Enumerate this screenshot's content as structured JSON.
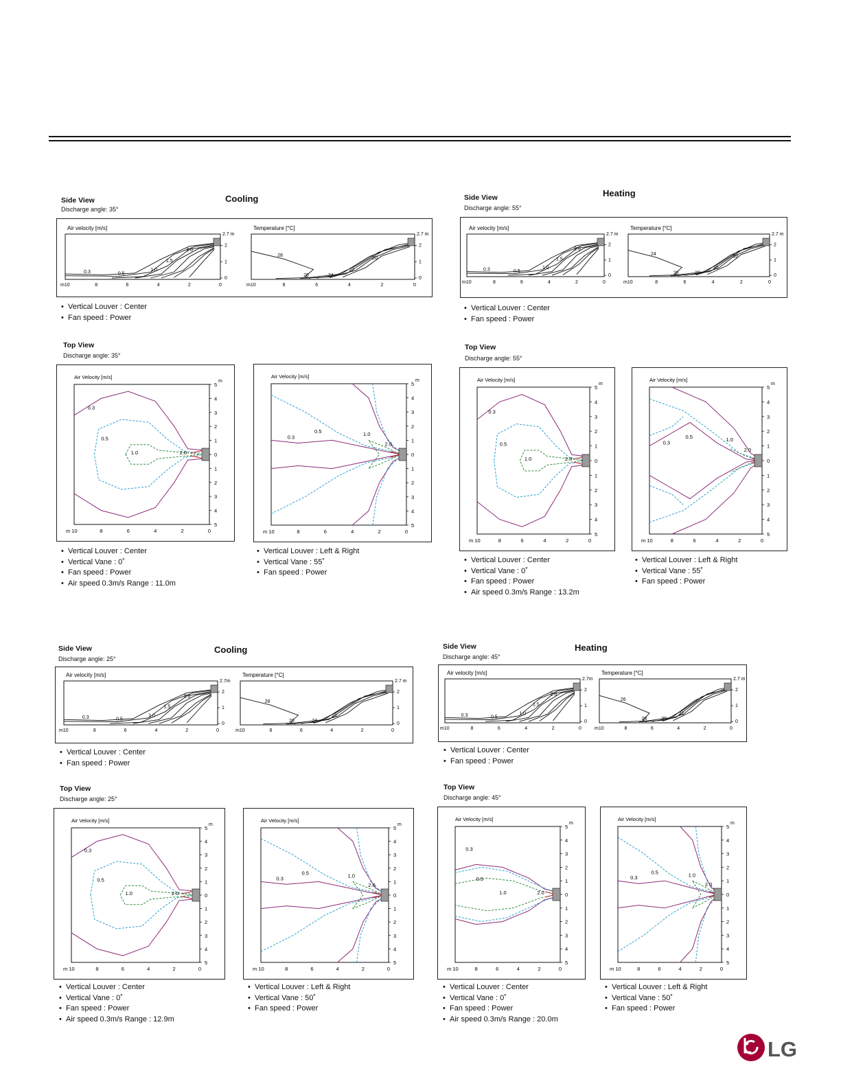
{
  "sections": [
    {
      "id": "s1-cooling",
      "title": "Cooling",
      "side": {
        "title": "Side View",
        "discharge": "Discharge angle: 35°",
        "charts": [
          {
            "label": "Air velocity [m/s]",
            "height_label": "2.7 m",
            "x_ticks": [
              "m10",
              "8",
              "6",
              "4",
              "2",
              "0"
            ],
            "y_ticks": [
              "2",
              "1",
              "0"
            ],
            "contour_labels": [
              "0.3",
              "0.5",
              "1.0",
              "1.5",
              "2.0"
            ]
          },
          {
            "label": "Temperature [°C]",
            "height_label": "2.7 m",
            "x_ticks": [
              "m10",
              "8",
              "6",
              "4",
              "2",
              "0"
            ],
            "y_ticks": [
              "2",
              "1",
              "0"
            ],
            "contour_labels": [
              "28",
              "26",
              "24",
              "22",
              "20"
            ]
          }
        ],
        "bullets": [
          "Vertical Louver : Center",
          "Fan speed : Power"
        ]
      },
      "top": {
        "title": "Top View",
        "discharge": "Discharge angle: 35°",
        "charts": [
          {
            "label": "Air Velocity [m/s]",
            "unit": "m",
            "x_ticks": [
              "m 10",
              "8",
              "6",
              "4",
              "2",
              "0"
            ],
            "y_ticks": [
              "5",
              "4",
              "3",
              "2",
              "1",
              "0",
              "1",
              "2",
              "3",
              "4",
              "5"
            ],
            "contour_labels": [
              "0.3",
              "0.5",
              "1.0",
              "2.0"
            ],
            "bullets": [
              "Vertical Louver : Center",
              "Vertical Vane : 0˚",
              "Fan speed : Power",
              "Air speed 0.3m/s Range : 11.0m"
            ]
          },
          {
            "label": "Air Velocity [m/s]",
            "unit": "m",
            "x_ticks": [
              "m 10",
              "8",
              "6",
              "4",
              "2",
              "0"
            ],
            "y_ticks": [
              "5",
              "4",
              "3",
              "2",
              "1",
              "0",
              "1",
              "2",
              "3",
              "4",
              "5"
            ],
            "contour_labels": [
              "0.3",
              "0.5",
              "1.0",
              "2.0"
            ],
            "bullets": [
              "Vertical Louver : Left & Right",
              "Vertical Vane : 55˚",
              "Fan speed : Power"
            ]
          }
        ]
      }
    },
    {
      "id": "s2-heating",
      "title": "Heating",
      "side": {
        "title": "Side View",
        "discharge": "Discharge angle: 55°",
        "charts": [
          {
            "label": "Air velocity [m/s]",
            "height_label": "2.7 m",
            "x_ticks": [
              "m10",
              "8",
              "6",
              "4",
              "2",
              "0"
            ],
            "y_ticks": [
              "2",
              "1",
              "0"
            ],
            "contour_labels": [
              "0.3",
              "0.5",
              "1.0",
              "1.5",
              "2.0"
            ]
          },
          {
            "label": "Temperature [°C]",
            "height_label": "2.7 m",
            "x_ticks": [
              "m10",
              "8",
              "6",
              "4",
              "2",
              "0"
            ],
            "y_ticks": [
              "2",
              "1",
              "0"
            ],
            "contour_labels": [
              "24",
              "26",
              "28",
              "30",
              "32"
            ]
          }
        ],
        "bullets": [
          "Vertical Louver : Center",
          "Fan speed : Power"
        ]
      },
      "top": {
        "title": "Top View",
        "discharge": "Discharge angle: 55°",
        "charts": [
          {
            "label": "Air Velocity [m/s]",
            "unit": "m",
            "x_ticks": [
              "m 10",
              "8",
              "6",
              "4",
              "2",
              "0"
            ],
            "y_ticks": [
              "5",
              "4",
              "3",
              "2",
              "1",
              "0",
              "1",
              "2",
              "3",
              "4",
              "5"
            ],
            "contour_labels": [
              "0.3",
              "0.5",
              "1.0",
              "2.0"
            ],
            "bullets": [
              "Vertical Louver : Center",
              "Vertical Vane : 0˚",
              "Fan speed : Power",
              "Air speed 0.3m/s Range : 13.2m"
            ]
          },
          {
            "label": "Air Velocity [m/s]",
            "unit": "m",
            "x_ticks": [
              "m 10",
              "8",
              "6",
              "4",
              "2",
              "0"
            ],
            "y_ticks": [
              "5",
              "4",
              "3",
              "2",
              "1",
              "0",
              "1",
              "2",
              "3",
              "4",
              "5"
            ],
            "contour_labels": [
              "0.3",
              "0.5",
              "1.0",
              "2.0"
            ],
            "bullets": [
              "Vertical Louver : Left & Right",
              "Vertical Vane : 55˚",
              "Fan speed : Power"
            ]
          }
        ]
      }
    },
    {
      "id": "s3-cooling",
      "title": "Cooling",
      "side": {
        "title": "Side View",
        "discharge": "Discharge angle: 25°",
        "charts": [
          {
            "label": "Air velocity [m/s]",
            "height_label": "2.7m",
            "x_ticks": [
              "m10",
              "8",
              "6",
              "4",
              "2",
              "0"
            ],
            "y_ticks": [
              "2",
              "1",
              "0"
            ],
            "contour_labels": [
              "0.3",
              "0.5",
              "1.0",
              "1.5",
              "2.0"
            ]
          },
          {
            "label": "Temperature [°C]",
            "height_label": "2.7 m",
            "x_ticks": [
              "m10",
              "8",
              "6",
              "4",
              "2",
              "0"
            ],
            "y_ticks": [
              "2",
              "1",
              "0"
            ],
            "contour_labels": [
              "28",
              "26",
              "24",
              "22"
            ]
          }
        ],
        "bullets": [
          "Vertical Louver : Center",
          "Fan speed : Power"
        ]
      },
      "top": {
        "title": "Top View",
        "discharge": "Discharge angle: 25°",
        "charts": [
          {
            "label": "Air Velocity [m/s]",
            "unit": "m",
            "x_ticks": [
              "m 10",
              "8",
              "6",
              "4",
              "2",
              "0"
            ],
            "y_ticks": [
              "5",
              "4",
              "3",
              "2",
              "1",
              "0",
              "1",
              "2",
              "3",
              "4",
              "5"
            ],
            "contour_labels": [
              "0.3",
              "0.5",
              "1.0",
              "2.0"
            ],
            "bullets": [
              "Vertical Louver : Center",
              "Vertical Vane : 0˚",
              "Fan speed : Power",
              "Air speed 0.3m/s Range : 12.9m"
            ]
          },
          {
            "label": "Air Velocity [m/s]",
            "unit": "m",
            "x_ticks": [
              "m 10",
              "8",
              "6",
              "4",
              "2",
              "0"
            ],
            "y_ticks": [
              "5",
              "4",
              "3",
              "2",
              "1",
              "0",
              "1",
              "2",
              "3",
              "4",
              "5"
            ],
            "contour_labels": [
              "0.3",
              "0.5",
              "1.0",
              "2.0"
            ],
            "bullets": [
              "Vertical Louver : Left & Right",
              "Vertical Vane : 50˚",
              "Fan speed : Power"
            ]
          }
        ]
      }
    },
    {
      "id": "s4-heating",
      "title": "Heating",
      "side": {
        "title": "Side View",
        "discharge": "Discharge angle: 45°",
        "charts": [
          {
            "label": "Air velocity [m/s]",
            "height_label": "2.7m",
            "x_ticks": [
              "m10",
              "8",
              "6",
              "4",
              "2",
              "0"
            ],
            "y_ticks": [
              "2",
              "1",
              "0"
            ],
            "contour_labels": [
              "0.3",
              "0.5",
              "1.0",
              "1.5",
              "2.0"
            ]
          },
          {
            "label": "Temperature [°C]",
            "height_label": "2.7 m",
            "x_ticks": [
              "m10",
              "8",
              "6",
              "4",
              "2",
              "0"
            ],
            "y_ticks": [
              "2",
              "1",
              "0"
            ],
            "contour_labels": [
              "26",
              "28",
              "30",
              "32"
            ]
          }
        ],
        "bullets": [
          "Vertical Louver : Center",
          "Fan speed : Power"
        ]
      },
      "top": {
        "title": "Top View",
        "discharge": "Discharge angle: 45°",
        "charts": [
          {
            "label": "Air Velocity [m/s]",
            "unit": "m",
            "x_ticks": [
              "m 10",
              "8",
              "6",
              "4",
              "2",
              "0"
            ],
            "y_ticks": [
              "5",
              "4",
              "3",
              "2",
              "1",
              "0",
              "1",
              "2",
              "3",
              "4",
              "5"
            ],
            "contour_labels": [
              "0.3",
              "0.5",
              "1.0",
              "2.0"
            ],
            "bullets": [
              "Vertical Louver : Center",
              "Vertical Vane : 0˚",
              "Fan speed : Power",
              "Air speed 0.3m/s Range : 20.0m"
            ]
          },
          {
            "label": "Air Velocity [m/s]",
            "unit": "m",
            "x_ticks": [
              "m 10",
              "8",
              "6",
              "4",
              "2",
              "0"
            ],
            "y_ticks": [
              "5",
              "4",
              "3",
              "2",
              "1",
              "0",
              "1",
              "2",
              "3",
              "4",
              "5"
            ],
            "contour_labels": [
              "0.3",
              "0.5",
              "1.0",
              "2.0"
            ],
            "bullets": [
              "Vertical Louver : Left & Right",
              "Vertical Vane : 50˚",
              "Fan speed : Power"
            ]
          }
        ]
      }
    }
  ],
  "brand": {
    "logo_text": "LG",
    "color": "#a50034"
  },
  "colors": {
    "solid": "#111111",
    "purple": "#8a2a78",
    "blue_dashed": "#2a9fd0",
    "green_dashed": "#2f8a3a",
    "red_jet": "#d62020",
    "unit_gray": "#9a9a9a"
  }
}
